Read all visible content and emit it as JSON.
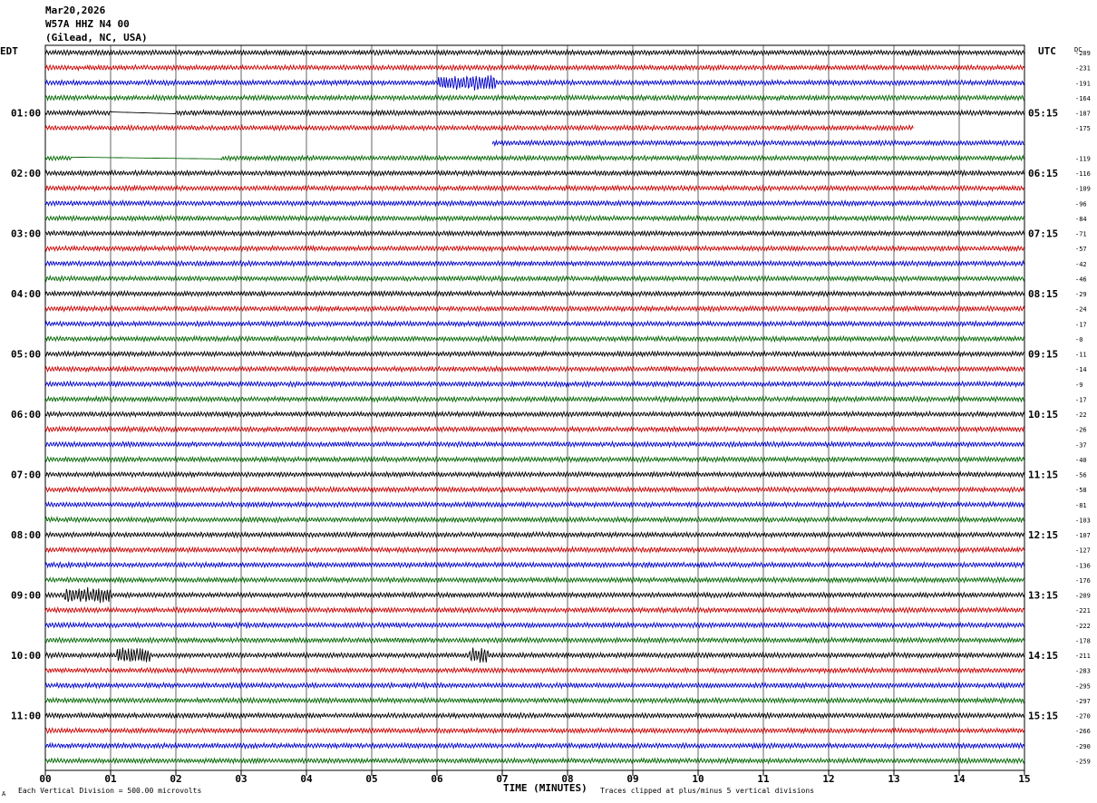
{
  "header": {
    "date": "Mar20,2026",
    "station": "W57A HHZ N4 00",
    "location": "(Gilead, NC, USA)"
  },
  "left_zone": "EDT",
  "right_zone": "UTC",
  "dc_label": "DC",
  "footer": {
    "scale_note": "Each Vertical Division = 500.00 microvolts",
    "x_title": "TIME (MINUTES)",
    "clip_note": "Traces clipped at plus/minus 5 vertical divisions",
    "corner_mark": "A"
  },
  "colors": {
    "trace_cycle": [
      "#000000",
      "#cc0000",
      "#0000cc",
      "#006600"
    ],
    "grid": "#000000"
  },
  "chart_data": {
    "type": "line",
    "x_range_minutes": [
      0,
      15
    ],
    "x_ticks": [
      "00",
      "01",
      "02",
      "03",
      "04",
      "05",
      "06",
      "07",
      "08",
      "09",
      "10",
      "11",
      "12",
      "13",
      "14",
      "15"
    ],
    "row_count": 48,
    "left_time_labels": [
      {
        "row": 4,
        "label": "01:00"
      },
      {
        "row": 8,
        "label": "02:00"
      },
      {
        "row": 12,
        "label": "03:00"
      },
      {
        "row": 16,
        "label": "04:00"
      },
      {
        "row": 20,
        "label": "05:00"
      },
      {
        "row": 24,
        "label": "06:00"
      },
      {
        "row": 28,
        "label": "07:00"
      },
      {
        "row": 32,
        "label": "08:00"
      },
      {
        "row": 36,
        "label": "09:00"
      },
      {
        "row": 40,
        "label": "10:00"
      },
      {
        "row": 44,
        "label": "11:00"
      }
    ],
    "right_time_labels": [
      {
        "row": 4,
        "label": "05:15"
      },
      {
        "row": 8,
        "label": "06:15"
      },
      {
        "row": 12,
        "label": "07:15"
      },
      {
        "row": 16,
        "label": "08:15"
      },
      {
        "row": 20,
        "label": "09:15"
      },
      {
        "row": 24,
        "label": "10:15"
      },
      {
        "row": 28,
        "label": "11:15"
      },
      {
        "row": 32,
        "label": "12:15"
      },
      {
        "row": 36,
        "label": "13:15"
      },
      {
        "row": 40,
        "label": "14:15"
      },
      {
        "row": 44,
        "label": "15:15"
      }
    ],
    "dc_offsets": [
      "-209",
      "-231",
      "-191",
      "-164",
      "-187",
      "-175",
      "",
      "-119",
      "-116",
      "-109",
      "-96",
      "-84",
      "-71",
      "-57",
      "-42",
      "-46",
      "-29",
      "-24",
      "-17",
      "-0",
      "-11",
      "-14",
      "-9",
      "-17",
      "-22",
      "-26",
      "-37",
      "-40",
      "-56",
      "-58",
      "-81",
      "-103",
      "-107",
      "-127",
      "-136",
      "-176",
      "-209",
      "-221",
      "-222",
      "-178",
      "-211",
      "-283",
      "-295",
      "-297",
      "-270",
      "-266",
      "-290",
      "-259"
    ],
    "trace_gaps": [
      {
        "row": 4,
        "flat_start_min": 1.0,
        "flat_end_min": 2.0
      },
      {
        "row": 5,
        "end_min": 13.3
      },
      {
        "row": 6,
        "start_min": 6.85
      },
      {
        "row": 7,
        "flat_start_min": 0.4,
        "flat_end_min": 2.7
      }
    ],
    "events": [
      {
        "row": 2,
        "start_min": 6.0,
        "end_min": 6.9
      },
      {
        "row": 40,
        "start_min": 1.1,
        "end_min": 1.6
      },
      {
        "row": 40,
        "start_min": 6.5,
        "end_min": 6.8
      },
      {
        "row": 36,
        "start_min": 0.3,
        "end_min": 1.0
      }
    ]
  }
}
